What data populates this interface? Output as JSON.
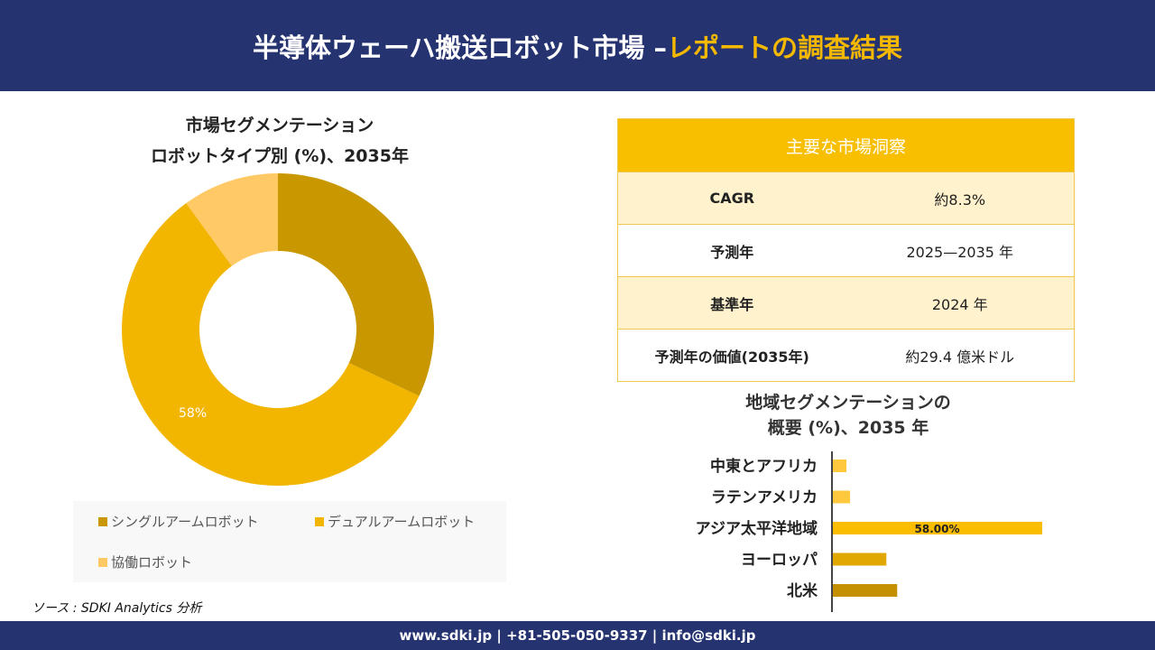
{
  "header": {
    "title_main": "半導体ウェーハ搬送ロボット市場 –",
    "title_highlight": "レポートの調査結果"
  },
  "footer": {
    "text": "www.sdki.jp | +81-505-050-9337 | info@sdki.jp"
  },
  "source": "ソース : SDKI Analytics 分析",
  "insights": {
    "title": "主要な市場洞察",
    "rows": [
      {
        "label": "CAGR",
        "value": "約8.3%"
      },
      {
        "label": "予測年",
        "value": "2025—2035 年"
      },
      {
        "label": "基準年",
        "value": "2024 年"
      },
      {
        "label": "予測年の価値(2035年)",
        "value": "約29.4 億米ドル"
      }
    ]
  },
  "colors": {
    "navy": "#253370",
    "accent": "#f8bf00"
  },
  "chart_data": [
    {
      "type": "pie",
      "title_line1": "市場セグメンテーション",
      "title_line2": "ロボットタイプ別 (%)、2035年",
      "categories": [
        "シングルアームロボット",
        "デュアルアームロボット",
        "協働ロボット"
      ],
      "values": [
        32,
        58,
        10
      ],
      "colors": [
        "#c99700",
        "#f2b500",
        "#ffc966"
      ],
      "data_labels": [
        "",
        "58%",
        ""
      ],
      "legend": "bottom"
    },
    {
      "type": "bar",
      "orientation": "horizontal",
      "title_line1": "地域セグメンテーションの",
      "title_line2": "概要 (%)、2035 年",
      "categories": [
        "中東とアフリカ",
        "ラテンアメリカ",
        "アジア太平洋地域",
        "ヨーロッパ",
        "北米"
      ],
      "values": [
        4,
        5,
        58,
        15,
        18
      ],
      "colors": [
        "#ffc83d",
        "#ffc83d",
        "#fbbd00",
        "#e0a800",
        "#c49000"
      ],
      "data_labels": [
        "",
        "",
        "58.00%",
        "",
        ""
      ]
    }
  ]
}
